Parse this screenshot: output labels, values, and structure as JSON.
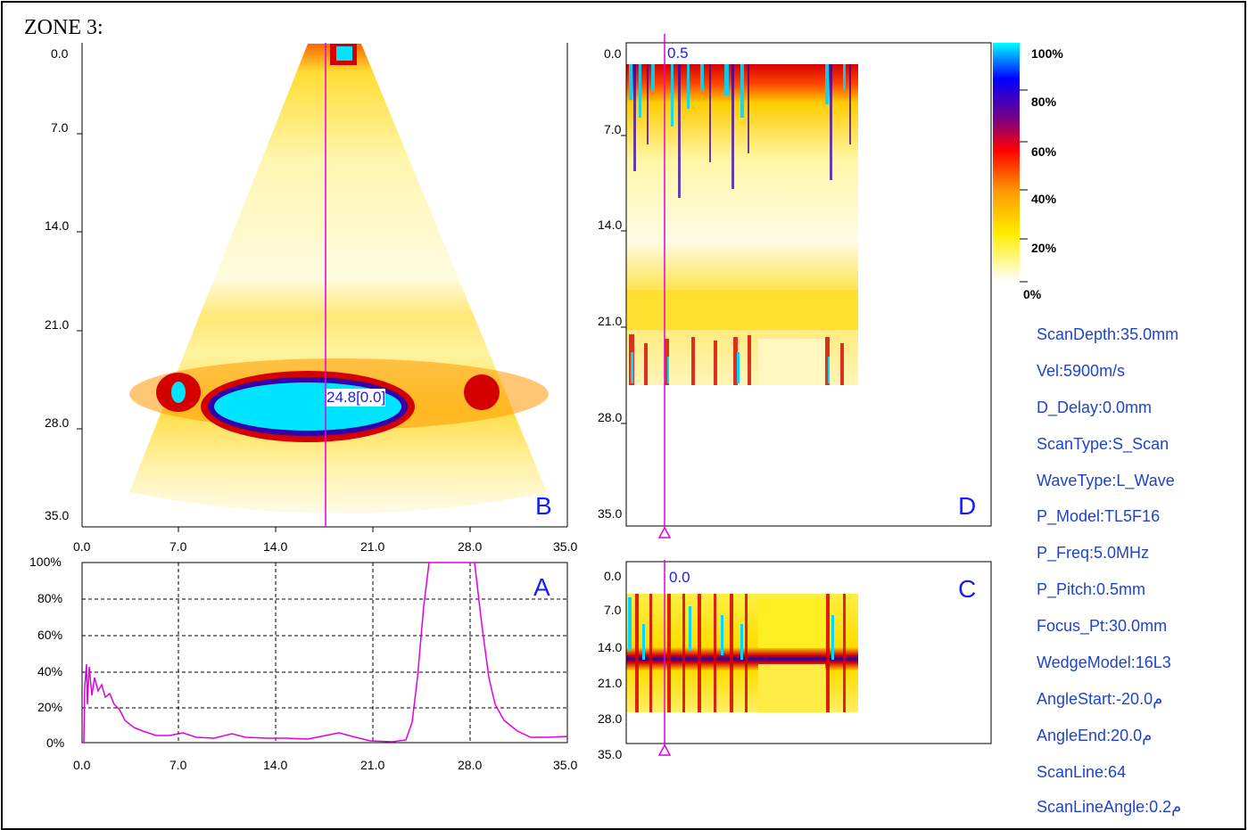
{
  "zone_title": "ZONE 3:",
  "panels": {
    "b_scan": {
      "letter": "B",
      "y_ticks": [
        "0.0",
        "7.0",
        "14.0",
        "21.0",
        "28.0",
        "35.0"
      ],
      "x_ticks": [
        "0.0",
        "7.0",
        "14.0",
        "21.0",
        "28.0",
        "35.0"
      ],
      "cursor_label": "24.8[0.0]"
    },
    "a_scan": {
      "letter": "A",
      "y_ticks": [
        "100%",
        "80%",
        "60%",
        "40%",
        "20%",
        "0%"
      ],
      "x_ticks": [
        "0.0",
        "7.0",
        "14.0",
        "21.0",
        "28.0",
        "35.0"
      ]
    },
    "d_scan": {
      "letter": "D",
      "y_ticks": [
        "0.0",
        "7.0",
        "14.0",
        "21.0",
        "28.0",
        "35.0"
      ],
      "cursor_label": "0.5"
    },
    "c_scan": {
      "letter": "C",
      "y_ticks": [
        "0.0",
        "7.0",
        "14.0",
        "21.0",
        "28.0",
        "35.0"
      ],
      "cursor_label": "0.0"
    }
  },
  "color_scale": {
    "labels": [
      "100%",
      "80%",
      "60%",
      "40%",
      "20%",
      "0%"
    ],
    "stops": [
      "#00ffff",
      "#0000ff",
      "#7a0080",
      "#ff0000",
      "#ff9900",
      "#ffff00",
      "#ffffff"
    ]
  },
  "parameters": [
    "ScanDepth:35.0mm",
    "Vel:5900m/s",
    "D_Delay:0.0mm",
    "ScanType:S_Scan",
    "WaveType:L_Wave",
    "P_Model:TL5F16",
    "P_Freq:5.0MHz",
    "P_Pitch:0.5mm",
    "Focus_Pt:30.0mm",
    "WedgeModel:16L3",
    "AngleStart:-20.0م",
    "AngleEnd:20.0م",
    "ScanLine:64",
    "ScanLineAngle:0.2م"
  ],
  "colors": {
    "cursor": "#e100e1",
    "label": "#1a1aff",
    "param_text": "#1f43c9",
    "indication": "#00ffff"
  }
}
